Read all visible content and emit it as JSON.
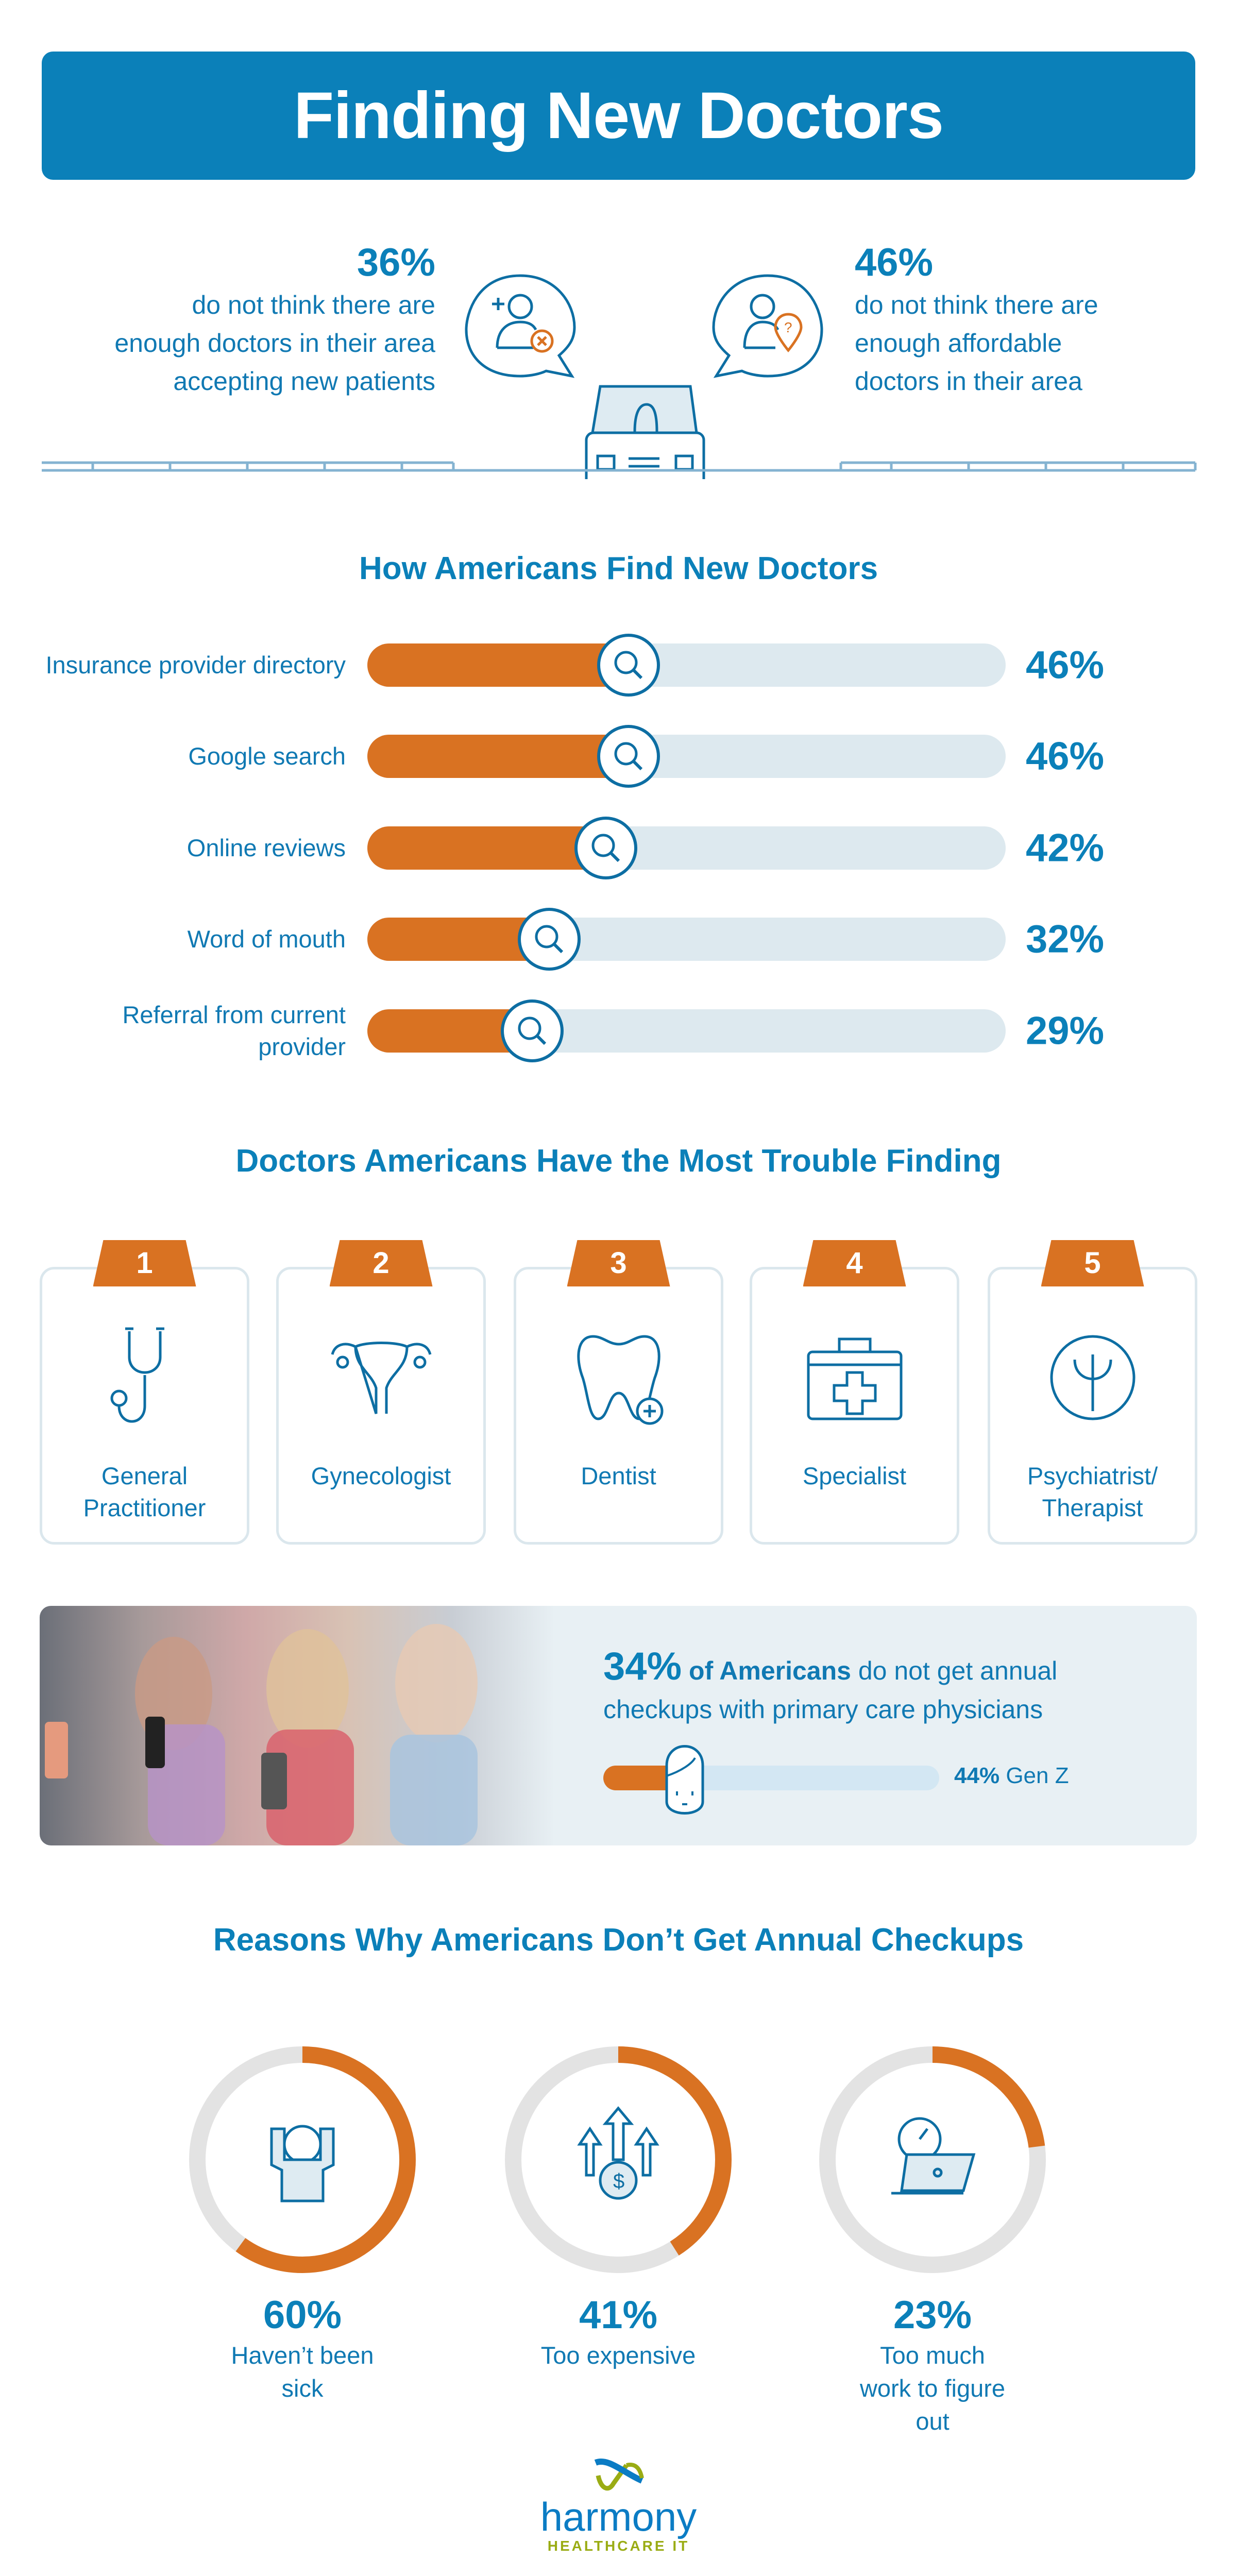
{
  "header": {
    "title": "Finding New Doctors"
  },
  "stats": [
    {
      "value": "36%",
      "lines": [
        "do not think there are",
        "enough doctors in their area",
        "accepting new patients"
      ]
    },
    {
      "value": "46%",
      "lines": [
        "do not think there are",
        "enough affordable",
        "doctors in their area"
      ]
    }
  ],
  "find": {
    "title": "How Americans Find New Doctors",
    "items": [
      {
        "label": "Insurance provider directory",
        "value": 46,
        "text": "46%"
      },
      {
        "label": "Google search",
        "value": 46,
        "text": "46%"
      },
      {
        "label": "Online reviews",
        "value": 42,
        "text": "42%"
      },
      {
        "label": "Word of mouth",
        "value": 32,
        "text": "32%"
      },
      {
        "label": "Referral from current provider",
        "value": 29,
        "text": "29%"
      }
    ]
  },
  "trouble": {
    "title": "Doctors Americans Have the Most Trouble Finding",
    "items": [
      {
        "rank": "1",
        "label": "General Practitioner",
        "icon": "stethoscope-icon"
      },
      {
        "rank": "2",
        "label": "Gynecologist",
        "icon": "uterus-icon"
      },
      {
        "rank": "3",
        "label": "Dentist",
        "icon": "tooth-icon"
      },
      {
        "rank": "4",
        "label": "Specialist",
        "icon": "medical-kit-icon"
      },
      {
        "rank": "5",
        "label": "Psychiatrist/ Therapist",
        "icon": "psi-icon"
      }
    ]
  },
  "checkups": {
    "pct": "34%",
    "bold": "of Americans",
    "rest": " do not get annual checkups with primary care physicians",
    "genz_value": 44,
    "genz_pct": "44%",
    "genz_label": "Gen Z"
  },
  "reasons": {
    "title": "Reasons Why Americans Don’t Get Annual Checkups",
    "items": [
      {
        "value": 60,
        "text": "60%",
        "label": "Haven’t been sick",
        "icon": "flexing-person-icon"
      },
      {
        "value": 41,
        "text": "41%",
        "label": "Too expensive",
        "icon": "rising-cost-icon"
      },
      {
        "value": 23,
        "text": "23%",
        "label": "Too much work to figure out",
        "icon": "laptop-clock-icon"
      }
    ]
  },
  "logo": {
    "name": "harmony",
    "tagline": "HEALTHCARE IT"
  },
  "colors": {
    "blue": "#0b80b9",
    "orange": "#d97222",
    "track": "#dde9ef",
    "green": "#9aac14"
  }
}
